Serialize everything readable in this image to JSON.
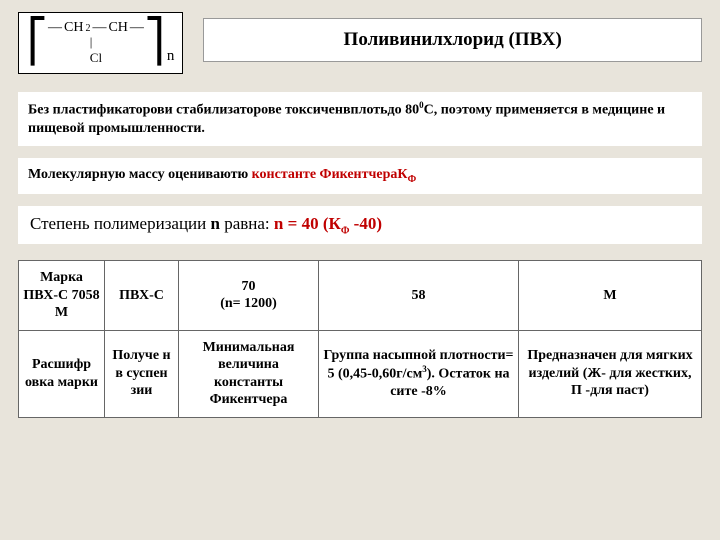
{
  "formula": {
    "left_bracket": "⎡",
    "right_bracket": "⎤",
    "line1_p1": "CH",
    "line1_s1": "2",
    "line1_dash": "—",
    "line1_p2": "CH",
    "line1_dash2": "—",
    "line2_bar": "|",
    "line2_cl": "Cl",
    "n": "n"
  },
  "title": "Поливинилхлорид (ПВХ)",
  "p1": {
    "t1": "Без пластификаторови стабилизаторове токсиченвплотьдо 80",
    "sup": "0",
    "t2": "С, поэтому применяется в медицине и пищевой промышленности."
  },
  "p2": {
    "t1": "Молекулярную массу оцениваютю ",
    "t2": "константе Фикентчера",
    "t3": "К",
    "sub": "Ф"
  },
  "p3": {
    "t1": "Степень полимеризации ",
    "t2": "n",
    "t3": " равна: ",
    "t4": "n  =  40 (К",
    "sub": "Ф",
    "t5": " -40)"
  },
  "table": {
    "r1c1": "Марка ПВХ-С 7058 М",
    "r1c2": "ПВХ-С",
    "r1c3": "70\n(n= 1200)",
    "r1c4": "58",
    "r1c5": "М",
    "r2c1": "Расшифр овка марки",
    "r2c2": "Получе н в суспен зии",
    "r2c3": "Минимальная величина константы Фикентчера",
    "r2c4a": "Группа насыпной плотности= 5 (0,45-0,60г/см",
    "r2c4sup": "3",
    "r2c4b": "). Остаток на сите -8%",
    "r2c5": "Предназначен для мягких изделий (Ж- для жестких, П -для паст)"
  },
  "colors": {
    "bg": "#e8e4db",
    "red": "#c00000",
    "white": "#ffffff"
  }
}
